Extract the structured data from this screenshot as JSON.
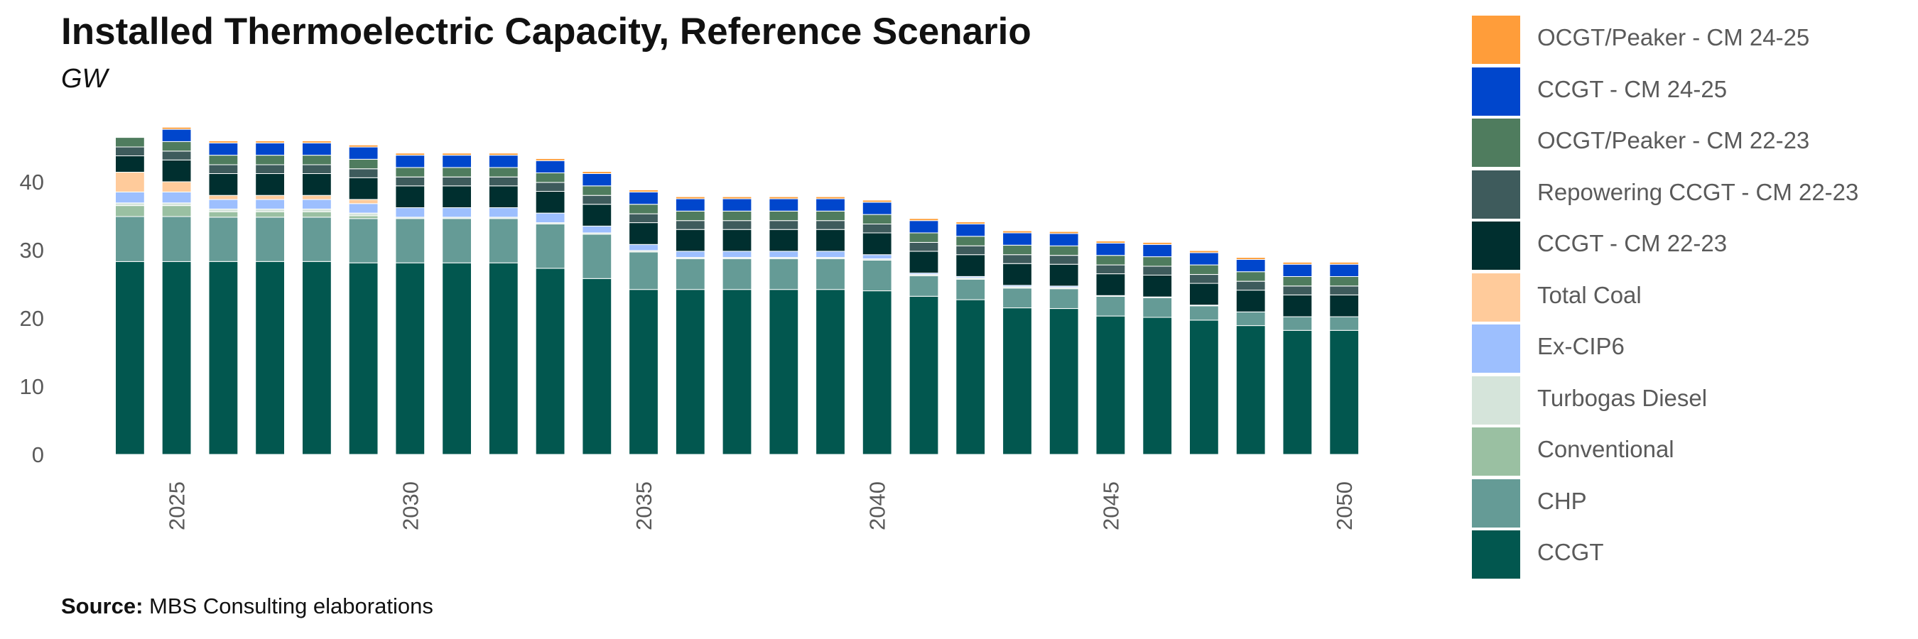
{
  "header": {
    "title": "Installed Thermoelectric Capacity, Reference Scenario",
    "subtitle": "GW"
  },
  "footer": {
    "source_label": "Source:",
    "source_text": "MBS Consulting elaborations"
  },
  "chart_data": {
    "type": "bar",
    "stacked": true,
    "title": "Installed Thermoelectric Capacity, Reference Scenario",
    "subtitle": "GW",
    "xlabel": "",
    "ylabel": "",
    "ylim": [
      0,
      48
    ],
    "yticks": [
      0,
      10,
      20,
      30,
      40
    ],
    "xtick_labels": [
      "2025",
      "2030",
      "2035",
      "2040",
      "2045",
      "2050"
    ],
    "grid": false,
    "legend_position": "right",
    "categories": [
      2024,
      2025,
      2026,
      2027,
      2028,
      2029,
      2030,
      2031,
      2032,
      2033,
      2034,
      2035,
      2036,
      2037,
      2038,
      2039,
      2040,
      2041,
      2042,
      2043,
      2044,
      2045,
      2046,
      2047,
      2048,
      2049,
      2050
    ],
    "series": [
      {
        "name": "CCGT",
        "color": "#02574f",
        "values": [
          28.3,
          28.3,
          28.3,
          28.3,
          28.3,
          28.1,
          28.1,
          28.1,
          28.1,
          27.3,
          25.8,
          24.2,
          24.2,
          24.2,
          24.2,
          24.2,
          24.0,
          23.2,
          22.7,
          21.5,
          21.4,
          20.3,
          20.1,
          19.7,
          18.9,
          18.2,
          18.2
        ]
      },
      {
        "name": "CHP",
        "color": "#659b96",
        "values": [
          6.6,
          6.6,
          6.5,
          6.5,
          6.5,
          6.5,
          6.5,
          6.5,
          6.5,
          6.5,
          6.5,
          5.5,
          4.5,
          4.5,
          4.5,
          4.5,
          4.5,
          3.0,
          3.0,
          2.9,
          2.9,
          2.9,
          2.9,
          2.1,
          2.0,
          2.0,
          2.0
        ]
      },
      {
        "name": "Conventional",
        "color": "#9ac0a2",
        "values": [
          1.6,
          1.6,
          0.8,
          0.8,
          0.8,
          0.4,
          0,
          0,
          0,
          0,
          0,
          0,
          0,
          0,
          0,
          0,
          0,
          0,
          0,
          0,
          0,
          0,
          0,
          0,
          0,
          0,
          0
        ]
      },
      {
        "name": "Turbogas Diesel",
        "color": "#d5e4da",
        "values": [
          0.4,
          0.4,
          0.4,
          0.4,
          0.4,
          0.4,
          0.2,
          0.2,
          0.2,
          0.2,
          0.2,
          0.2,
          0.2,
          0.2,
          0.2,
          0.2,
          0.2,
          0.2,
          0.2,
          0.2,
          0.2,
          0,
          0,
          0,
          0,
          0,
          0
        ]
      },
      {
        "name": "Ex-CIP6",
        "color": "#9dbffe",
        "values": [
          1.6,
          1.6,
          1.4,
          1.4,
          1.4,
          1.4,
          1.4,
          1.4,
          1.4,
          1.4,
          1.0,
          0.9,
          0.9,
          0.9,
          0.9,
          0.9,
          0.6,
          0.2,
          0.2,
          0.2,
          0.2,
          0.1,
          0.1,
          0.1,
          0,
          0,
          0
        ]
      },
      {
        "name": "Total Coal",
        "color": "#ffcb9b",
        "values": [
          2.9,
          1.5,
          0.6,
          0.6,
          0.6,
          0.6,
          0,
          0,
          0,
          0,
          0,
          0,
          0,
          0,
          0,
          0,
          0,
          0,
          0,
          0,
          0,
          0,
          0,
          0,
          0,
          0,
          0
        ]
      },
      {
        "name": "CCGT - CM 22-23",
        "color": "#002f2f",
        "values": [
          2.4,
          3.2,
          3.2,
          3.2,
          3.2,
          3.2,
          3.2,
          3.2,
          3.2,
          3.2,
          3.2,
          3.2,
          3.2,
          3.2,
          3.2,
          3.2,
          3.2,
          3.2,
          3.2,
          3.2,
          3.2,
          3.2,
          3.2,
          3.2,
          3.2,
          3.2,
          3.2
        ]
      },
      {
        "name": "Repowering CCGT - CM 22-23",
        "color": "#3e5b5c",
        "values": [
          1.3,
          1.3,
          1.3,
          1.3,
          1.3,
          1.3,
          1.3,
          1.3,
          1.3,
          1.3,
          1.3,
          1.3,
          1.3,
          1.3,
          1.3,
          1.3,
          1.3,
          1.3,
          1.3,
          1.3,
          1.3,
          1.3,
          1.3,
          1.3,
          1.3,
          1.3,
          1.3
        ]
      },
      {
        "name": "OCGT/Peaker - CM 22-23",
        "color": "#4f7c5e",
        "values": [
          1.4,
          1.4,
          1.4,
          1.4,
          1.4,
          1.4,
          1.4,
          1.4,
          1.4,
          1.4,
          1.4,
          1.4,
          1.4,
          1.4,
          1.4,
          1.4,
          1.4,
          1.4,
          1.4,
          1.4,
          1.4,
          1.4,
          1.4,
          1.4,
          1.4,
          1.4,
          1.4
        ]
      },
      {
        "name": "CCGT - CM 24-25",
        "color": "#0046cc",
        "values": [
          0,
          1.8,
          1.8,
          1.8,
          1.8,
          1.8,
          1.8,
          1.8,
          1.8,
          1.8,
          1.8,
          1.8,
          1.8,
          1.8,
          1.8,
          1.8,
          1.8,
          1.8,
          1.8,
          1.8,
          1.8,
          1.8,
          1.8,
          1.8,
          1.8,
          1.8,
          1.8
        ]
      },
      {
        "name": "OCGT/Peaker - CM 24-25",
        "color": "#ff9d3a",
        "values": [
          0,
          0.3,
          0.3,
          0.3,
          0.3,
          0.3,
          0.3,
          0.3,
          0.3,
          0.3,
          0.3,
          0.3,
          0.3,
          0.3,
          0.3,
          0.3,
          0.3,
          0.3,
          0.3,
          0.3,
          0.3,
          0.3,
          0.3,
          0.3,
          0.3,
          0.3,
          0.3
        ]
      }
    ]
  },
  "legend": {
    "items": [
      {
        "label": "OCGT/Peaker - CM 24-25",
        "color": "#ff9d3a"
      },
      {
        "label": "CCGT - CM 24-25",
        "color": "#0046cc"
      },
      {
        "label": "OCGT/Peaker - CM 22-23",
        "color": "#4f7c5e"
      },
      {
        "label": "Repowering CCGT - CM 22-23",
        "color": "#3e5b5c"
      },
      {
        "label": "CCGT - CM 22-23",
        "color": "#002f2f"
      },
      {
        "label": "Total Coal",
        "color": "#ffcb9b"
      },
      {
        "label": "Ex-CIP6",
        "color": "#9dbffe"
      },
      {
        "label": "Turbogas Diesel",
        "color": "#d5e4da"
      },
      {
        "label": "Conventional",
        "color": "#9ac0a2"
      },
      {
        "label": "CHP",
        "color": "#659b96"
      },
      {
        "label": "CCGT",
        "color": "#02574f"
      }
    ]
  }
}
